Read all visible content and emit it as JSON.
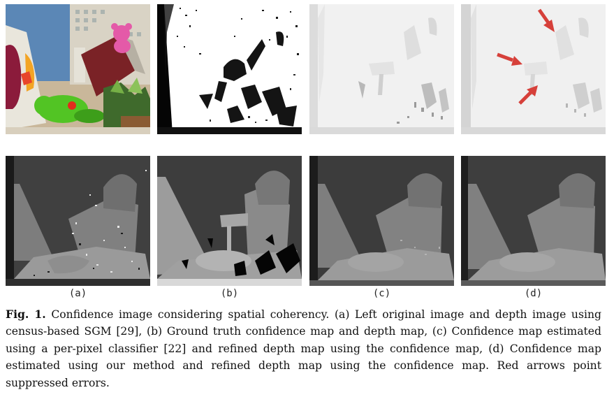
{
  "figure": {
    "fig_label": "Fig. 1.",
    "caption_text": " Confidence image considering spatial coherency. (a) Left original image and depth image using census-based SGM [29], (b) Ground truth confidence map and depth map, (c) Confidence map estimated using a per-pixel classifier [22] and refined depth map using the confidence map, (d) Confidence map estimated using our method and refined depth map using the confidence map. Red arrows point suppressed errors.",
    "subfigure_labels": [
      "(a)",
      "(b)",
      "(c)",
      "(d)"
    ],
    "arrow_color": "#d6403a"
  }
}
